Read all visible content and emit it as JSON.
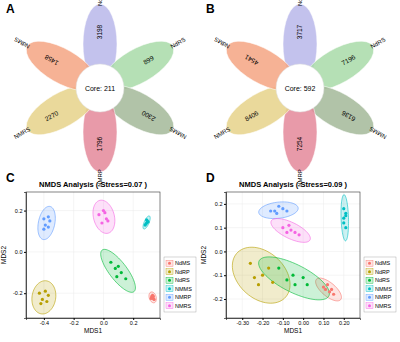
{
  "chart_data": [
    {
      "type": "flower",
      "panel_label": "A",
      "categories": [
        "NdRP",
        "NdRS",
        "NMMS",
        "NMRP",
        "NMRS",
        "NdMS"
      ],
      "values": [
        3198,
        899,
        2300,
        1796,
        2270,
        1458
      ],
      "colors": [
        "#b9b7ea",
        "#a8dba8",
        "#a3b899",
        "#e4889a",
        "#e6d28a",
        "#f4a582"
      ],
      "core_label": "Core: 211"
    },
    {
      "type": "flower",
      "panel_label": "B",
      "categories": [
        "NdRP",
        "NdRS",
        "NMMS",
        "NMRP",
        "NMRS",
        "NdMS"
      ],
      "values": [
        3717,
        7196,
        6136,
        7254,
        8406,
        4541
      ],
      "colors": [
        "#b9b7ea",
        "#a8dba8",
        "#a3b899",
        "#e4889a",
        "#e6d28a",
        "#f4a582"
      ],
      "core_label": "Core: 592"
    },
    {
      "type": "scatter",
      "panel_label": "C",
      "title": "NMDS Analysis ( Stress=0.07 )",
      "x_label": "MDS1",
      "y_label": "MDS2",
      "xlim": [
        -0.52,
        0.38
      ],
      "ylim": [
        -0.32,
        0.29
      ],
      "xticks": [
        -0.4,
        -0.2,
        {
          "value": 0,
          "label": "0.0"
        },
        0.2
      ],
      "yticks": [
        -0.2,
        {
          "value": 0,
          "label": "0.0"
        },
        0.2
      ],
      "grid": true,
      "legend": "right",
      "series": [
        {
          "name": "NdMS",
          "color": "#F8766D",
          "x": [
            0.325,
            0.335,
            0.33,
            0.34,
            0.32,
            0.335
          ],
          "values": [
            -0.215,
            -0.225,
            -0.21,
            -0.23,
            -0.225,
            -0.215
          ]
        },
        {
          "name": "NdRP",
          "color": "#B79F00",
          "x": [
            -0.43,
            -0.38,
            -0.41,
            -0.37,
            -0.42,
            -0.39
          ],
          "values": [
            -0.2,
            -0.24,
            -0.23,
            -0.21,
            -0.25,
            -0.19
          ]
        },
        {
          "name": "NdRS",
          "color": "#00BA38",
          "x": [
            0.05,
            0.08,
            0.12,
            0.15,
            0.1,
            0.09
          ],
          "values": [
            -0.05,
            -0.08,
            -0.1,
            -0.13,
            -0.07,
            -0.12
          ]
        },
        {
          "name": "NMMS",
          "color": "#00BFC4",
          "x": [
            0.285,
            0.295,
            0.29,
            0.3,
            0.28,
            0.29
          ],
          "values": [
            0.135,
            0.15,
            0.14,
            0.145,
            0.13,
            0.155
          ]
        },
        {
          "name": "NMRP",
          "color": "#619CFF",
          "x": [
            -0.4,
            -0.37,
            -0.39,
            -0.36,
            -0.4,
            -0.37
          ],
          "values": [
            0.16,
            0.12,
            0.13,
            0.15,
            0.11,
            0.17
          ]
        },
        {
          "name": "NMRS",
          "color": "#F564E3",
          "x": [
            -0.03,
            0.02,
            0.0,
            0.03,
            -0.01,
            0.01
          ],
          "values": [
            0.18,
            0.16,
            0.2,
            0.15,
            0.14,
            0.19
          ]
        }
      ]
    },
    {
      "type": "scatter",
      "panel_label": "D",
      "title": "NMDS Analysis ( Stress=0.09 )",
      "x_label": "MDS1",
      "y_label": "MDS2",
      "xlim": [
        -0.38,
        0.28
      ],
      "ylim": [
        -0.28,
        0.25
      ],
      "xticks": [
        {
          "value": -0.3,
          "label": "-0.30"
        },
        {
          "value": -0.2,
          "label": "-0.20"
        },
        {
          "value": -0.1,
          "label": "-0.10"
        },
        {
          "value": 0,
          "label": "0.00"
        },
        {
          "value": 0.1,
          "label": "0.10"
        },
        {
          "value": 0.2,
          "label": "0.20"
        }
      ],
      "yticks": [
        -0.2,
        -0.1,
        {
          "value": 0,
          "label": "0.0"
        },
        0.1,
        0.2
      ],
      "grid": true,
      "legend": "right",
      "series": [
        {
          "name": "NdMS",
          "color": "#F8766D",
          "x": [
            0.1,
            0.13,
            0.12,
            0.15,
            0.11,
            0.14
          ],
          "values": [
            -0.15,
            -0.17,
            -0.14,
            -0.18,
            -0.16,
            -0.16
          ]
        },
        {
          "name": "NdRP",
          "color": "#B79F00",
          "x": [
            -0.26,
            -0.2,
            -0.15,
            -0.22,
            -0.17,
            -0.24
          ],
          "values": [
            -0.05,
            -0.1,
            -0.13,
            -0.14,
            -0.07,
            -0.11
          ]
        },
        {
          "name": "NdRS",
          "color": "#00BA38",
          "x": [
            -0.12,
            -0.05,
            0.02,
            -0.08,
            0.0,
            -0.04
          ],
          "values": [
            -0.07,
            -0.1,
            -0.14,
            -0.12,
            -0.11,
            -0.14
          ]
        },
        {
          "name": "NMMS",
          "color": "#00BFC4",
          "x": [
            0.2,
            0.21,
            0.2,
            0.21,
            0.2,
            0.21
          ],
          "values": [
            0.12,
            0.16,
            0.18,
            0.1,
            0.14,
            0.15
          ]
        },
        {
          "name": "NMRP",
          "color": "#619CFF",
          "x": [
            -0.16,
            -0.1,
            -0.13,
            -0.08,
            -0.12,
            -0.14
          ],
          "values": [
            0.17,
            0.18,
            0.16,
            0.17,
            0.19,
            0.17
          ]
        },
        {
          "name": "NMRS",
          "color": "#F564E3",
          "x": [
            -0.1,
            -0.04,
            -0.07,
            -0.02,
            -0.06,
            -0.08
          ],
          "values": [
            0.1,
            0.08,
            0.11,
            0.07,
            0.09,
            0.08
          ]
        }
      ]
    }
  ]
}
